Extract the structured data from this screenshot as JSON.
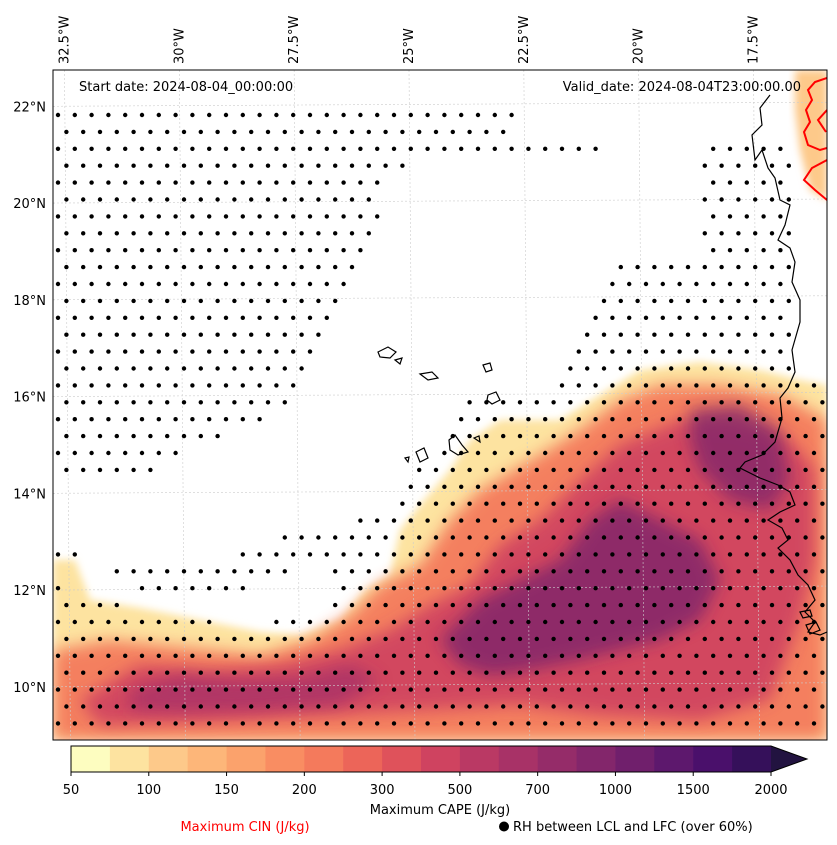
{
  "map": {
    "start_label": "Start date: 2024-08-04_00:00:00",
    "valid_label": "Valid_date: 2024-08-04T23:00:00.00",
    "lon_labels": [
      "32.5°W",
      "30°W",
      "27.5°W",
      "25°W",
      "22.5°W",
      "20°W",
      "17.5°W"
    ],
    "lat_labels": [
      "22°N",
      "20°N",
      "18°N",
      "16°N",
      "14°N",
      "12°N",
      "10°N"
    ],
    "lon_values": [
      -32.5,
      -30,
      -27.5,
      -25,
      -22.5,
      -20,
      -17.5
    ],
    "lat_values": [
      22,
      20,
      18,
      16,
      14,
      12,
      10
    ],
    "extent": {
      "lon_min": -32.75,
      "lon_max": -15.9,
      "lat_min": 8.9,
      "lat_max": 22.75
    }
  },
  "colorbar": {
    "tick_labels": [
      "50",
      "100",
      "150",
      "200",
      "300",
      "500",
      "700",
      "1000",
      "1500",
      "2000"
    ],
    "levels": [
      50,
      75,
      100,
      125,
      150,
      175,
      200,
      250,
      300,
      400,
      500,
      600,
      700,
      800,
      1000,
      1250,
      1500,
      1750,
      2000
    ],
    "colors": [
      "#fdfdc0",
      "#fde3a0",
      "#fdc98a",
      "#fdb679",
      "#fba26c",
      "#f98d62",
      "#f47a5c",
      "#ec6559",
      "#df525b",
      "#cf4360",
      "#ba3964",
      "#a83267",
      "#952c69",
      "#83266b",
      "#701f6c",
      "#5d186d",
      "#4a106b",
      "#35105a",
      "#221340"
    ],
    "label": "Maximum CAPE (J/kg)"
  },
  "legend": {
    "cin_label": "Maximum CIN (J/kg)",
    "cin_color": "#ff0000",
    "rh_label": "RH between LCL and LFC (over 60%)"
  }
}
